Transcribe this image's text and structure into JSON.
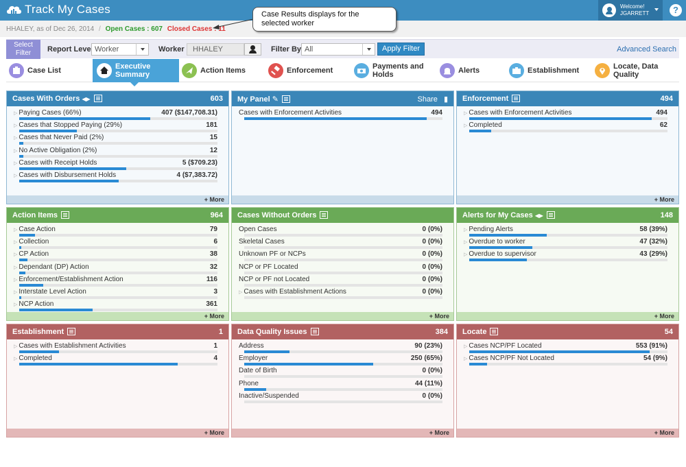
{
  "app": {
    "title": "Track My Cases"
  },
  "user": {
    "welcome": "Welcome!",
    "name": "JGARRETT"
  },
  "help": {
    "label": "?"
  },
  "subheader": {
    "asof": "HHALEY, as of Dec 26, 2014",
    "sep": "/",
    "open": "Open Cases : 607",
    "closed": "Closed Cases : 11"
  },
  "callout": {
    "text_line1": "Case Results displays for the",
    "text_line2": "selected worker"
  },
  "filter": {
    "select_filter": "Select Filter",
    "report_level_label": "Report Level",
    "report_level_value": "Worker",
    "worker_label": "Worker",
    "worker_value": "HHALEY",
    "filter_by_label": "Filter By",
    "filter_by_value": "All",
    "apply": "Apply Filter",
    "advanced": "Advanced Search"
  },
  "tabs": [
    {
      "label": "Case List",
      "icon": "case-list-icon",
      "color": "#9a8ee0"
    },
    {
      "label": "Executive Summary",
      "icon": "home-icon",
      "color": "#ffffff"
    },
    {
      "label": "Action Items",
      "icon": "action-items-icon",
      "color": "#8cc152"
    },
    {
      "label": "Enforcement",
      "icon": "enforcement-icon",
      "color": "#e0524f"
    },
    {
      "label": "Payments and Holds",
      "icon": "payments-icon",
      "color": "#5aaee0"
    },
    {
      "label": "Alerts",
      "icon": "alerts-icon",
      "color": "#9a8ee0"
    },
    {
      "label": "Establishment",
      "icon": "establishment-icon",
      "color": "#5aaee0"
    },
    {
      "label": "Locate, Data Quality",
      "icon": "locate-icon",
      "color": "#f5b041"
    }
  ],
  "more_label": "+ More",
  "panels": {
    "cases_with_orders": {
      "title": "Cases With Orders",
      "count": "603",
      "rows": [
        {
          "label": "Paying Cases (66%)",
          "value": "407 ($147,708.31)",
          "fill": 0.66
        },
        {
          "label": "Cases that Stopped Paying (29%)",
          "value": "181",
          "fill": 0.29
        },
        {
          "label": "Cases that Never Paid (2%)",
          "value": "15",
          "fill": 0.02
        },
        {
          "label": "No Active Obligation (2%)",
          "value": "12",
          "fill": 0.02
        },
        {
          "label": "Cases with Receipt Holds",
          "value": "5 ($709.23)",
          "fill": 0.54
        },
        {
          "label": "Cases with Disbursement Holds",
          "value": "4 ($7,383.72)",
          "fill": 0.5
        }
      ]
    },
    "my_panel": {
      "title": "My Panel",
      "share": "Share",
      "rows": [
        {
          "label": "Cases with Enforcement Activities",
          "value": "494",
          "fill": 0.92
        }
      ]
    },
    "enforcement": {
      "title": "Enforcement",
      "count": "494",
      "rows": [
        {
          "label": "Cases with Enforcement Activities",
          "value": "494",
          "fill": 0.92
        },
        {
          "label": "Completed",
          "value": "62",
          "fill": 0.11
        }
      ]
    },
    "action_items": {
      "title": "Action Items",
      "count": "964",
      "rows": [
        {
          "label": "Case Action",
          "value": "79",
          "fill": 0.08
        },
        {
          "label": "Collection",
          "value": "6",
          "fill": 0.01
        },
        {
          "label": "CP Action",
          "value": "38",
          "fill": 0.04
        },
        {
          "label": "Dependant (DP) Action",
          "value": "32",
          "fill": 0.03
        },
        {
          "label": "Enforcement/Establishment Action",
          "value": "116",
          "fill": 0.12
        },
        {
          "label": "Interstate Level Action",
          "value": "3",
          "fill": 0.01
        },
        {
          "label": "NCP Action",
          "value": "361",
          "fill": 0.37
        }
      ]
    },
    "cases_without_orders": {
      "title": "Cases Without Orders",
      "rows": [
        {
          "label": "Open Cases",
          "value": "0 (0%)",
          "fill": 0
        },
        {
          "label": "Skeletal Cases",
          "value": "0 (0%)",
          "fill": 0
        },
        {
          "label": "Unknown PF or NCPs",
          "value": "0 (0%)",
          "fill": 0
        },
        {
          "label": "NCP or PF Located",
          "value": "0 (0%)",
          "fill": 0
        },
        {
          "label": "NCP or PF not Located",
          "value": "0 (0%)",
          "fill": 0
        },
        {
          "label": "Cases with Establishment Actions",
          "value": "0 (0%)",
          "fill": 0
        }
      ]
    },
    "alerts": {
      "title": "Alerts for My Cases",
      "count": "148",
      "rows": [
        {
          "label": "Pending Alerts",
          "value": "58 (39%)",
          "fill": 0.39
        },
        {
          "label": "Overdue to worker",
          "value": "47 (32%)",
          "fill": 0.32
        },
        {
          "label": "Overdue to supervisor",
          "value": "43 (29%)",
          "fill": 0.29
        }
      ]
    },
    "establishment": {
      "title": "Establishment",
      "count": "1",
      "rows": [
        {
          "label": "Cases with Establishment Activities",
          "value": "1",
          "fill": 0.2
        },
        {
          "label": "Completed",
          "value": "4",
          "fill": 0.8
        }
      ]
    },
    "data_quality": {
      "title": "Data Quality Issues",
      "count": "384",
      "rows": [
        {
          "label": "Address",
          "value": "90 (23%)",
          "fill": 0.23
        },
        {
          "label": "Employer",
          "value": "250 (65%)",
          "fill": 0.65
        },
        {
          "label": "Date of Birth",
          "value": "0 (0%)",
          "fill": 0
        },
        {
          "label": "Phone",
          "value": "44 (11%)",
          "fill": 0.11
        },
        {
          "label": "Inactive/Suspended",
          "value": "0 (0%)",
          "fill": 0
        }
      ]
    },
    "locate": {
      "title": "Locate",
      "count": "54",
      "rows": [
        {
          "label": "Cases NCP/PF Located",
          "value": "553 (91%)",
          "fill": 0.91
        },
        {
          "label": "Cases NCP/PF Not Located",
          "value": "54 (9%)",
          "fill": 0.09
        }
      ]
    }
  }
}
